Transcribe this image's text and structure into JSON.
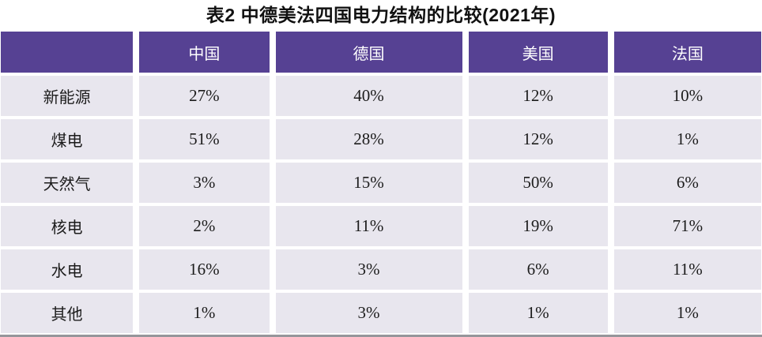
{
  "title": "表2  中德美法四国电力结构的比较(2021年)",
  "table": {
    "columns": [
      "",
      "中国",
      "德国",
      "美国",
      "法国"
    ],
    "rows": [
      {
        "label": "新能源",
        "values": [
          "27%",
          "40%",
          "12%",
          "10%"
        ]
      },
      {
        "label": "煤电",
        "values": [
          "51%",
          "28%",
          "12%",
          "1%"
        ]
      },
      {
        "label": "天然气",
        "values": [
          "3%",
          "15%",
          "50%",
          "6%"
        ]
      },
      {
        "label": "核电",
        "values": [
          "2%",
          "11%",
          "19%",
          "71%"
        ]
      },
      {
        "label": "水电",
        "values": [
          "16%",
          "3%",
          "6%",
          "11%"
        ]
      },
      {
        "label": "其他",
        "values": [
          "1%",
          "3%",
          "1%",
          "1%"
        ]
      }
    ]
  },
  "colors": {
    "header_bg": "#564193",
    "header_text": "#ffffff",
    "cell_bg": "#e8e6ee",
    "cell_text": "#1c1c1c"
  },
  "chart_data": {
    "type": "table",
    "title": "表2  中德美法四国电力结构的比较(2021年)",
    "columns": [
      "中国",
      "德国",
      "美国",
      "法国"
    ],
    "row_labels": [
      "新能源",
      "煤电",
      "天然气",
      "核电",
      "水电",
      "其他"
    ],
    "values_percent": [
      [
        27,
        40,
        12,
        10
      ],
      [
        51,
        28,
        12,
        1
      ],
      [
        3,
        15,
        50,
        6
      ],
      [
        2,
        11,
        19,
        71
      ],
      [
        16,
        3,
        6,
        11
      ],
      [
        1,
        3,
        1,
        1
      ]
    ]
  }
}
